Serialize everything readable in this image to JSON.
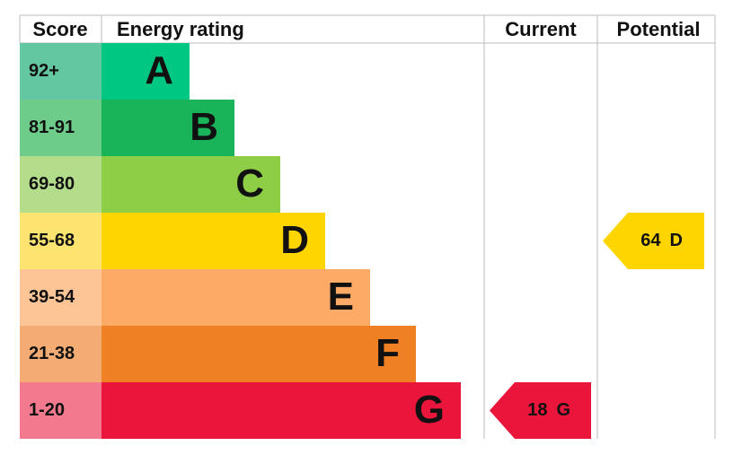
{
  "header": {
    "score": "Score",
    "rating": "Energy rating",
    "current": "Current",
    "potential": "Potential"
  },
  "bands": [
    {
      "score": "92+",
      "letter": "A"
    },
    {
      "score": "81-91",
      "letter": "B"
    },
    {
      "score": "69-80",
      "letter": "C"
    },
    {
      "score": "55-68",
      "letter": "D"
    },
    {
      "score": "39-54",
      "letter": "E"
    },
    {
      "score": "21-38",
      "letter": "F"
    },
    {
      "score": "1-20",
      "letter": "G"
    }
  ],
  "current": {
    "value": 18,
    "letter": "G"
  },
  "potential": {
    "value": 64,
    "letter": "D"
  }
}
